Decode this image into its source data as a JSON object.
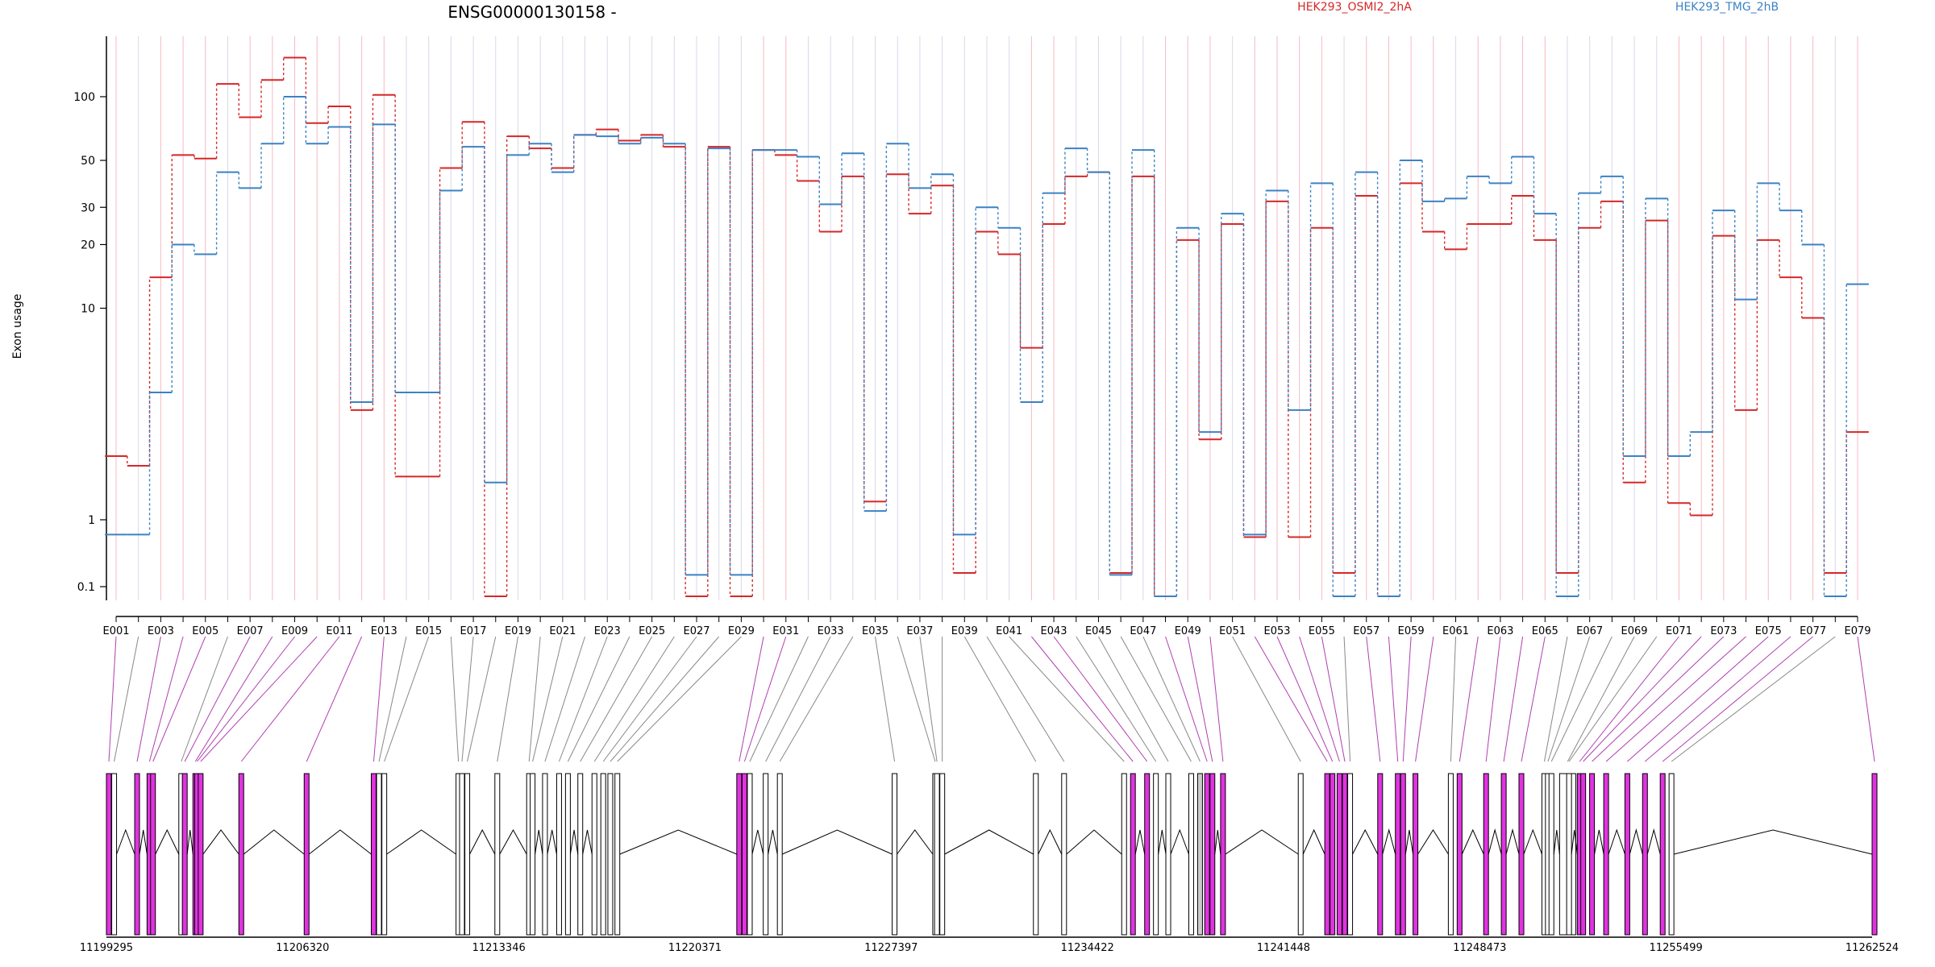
{
  "colors": {
    "series_a": "#d62728",
    "series_b": "#3b82c4",
    "highlight": "#e033e0",
    "constitutive": "#ffffff",
    "retained": "#cccccc",
    "highlight_link": "#b03fb0",
    "plain_link": "#888888",
    "highlight_grid": "#f6b9c3",
    "plain_grid": "#d7dae8"
  },
  "chart_data": {
    "type": "line",
    "title": "ENSG00000130158 -",
    "ylabel": "Exon usage",
    "y_scale": "log-like",
    "y_ticks": [
      0.1,
      1,
      10,
      20,
      30,
      50,
      100
    ],
    "categories": [
      "E001",
      "E002",
      "E003",
      "E004",
      "E005",
      "E006",
      "E007",
      "E008",
      "E009",
      "E010",
      "E011",
      "E012",
      "E013",
      "E014",
      "E015",
      "E016",
      "E017",
      "E018",
      "E019",
      "E020",
      "E021",
      "E022",
      "E023",
      "E024",
      "E025",
      "E026",
      "E027",
      "E028",
      "E029",
      "E030",
      "E031",
      "E032",
      "E033",
      "E034",
      "E035",
      "E036",
      "E037",
      "E038",
      "E039",
      "E040",
      "E041",
      "E042",
      "E043",
      "E044",
      "E045",
      "E046",
      "E047",
      "E048",
      "E049",
      "E050",
      "E051",
      "E052",
      "E053",
      "E054",
      "E055",
      "E056",
      "E057",
      "E058",
      "E059",
      "E060",
      "E061",
      "E062",
      "E063",
      "E064",
      "E065",
      "E066",
      "E067",
      "E068",
      "E069",
      "E070",
      "E071",
      "E072",
      "E073",
      "E074",
      "E075",
      "E076",
      "E077",
      "E078",
      "E079"
    ],
    "tick_labels": [
      "E001",
      "E003",
      "E005",
      "E007",
      "E009",
      "E011",
      "E013",
      "E015",
      "E017",
      "E019",
      "E021",
      "E023",
      "E025",
      "E027",
      "E029",
      "E031",
      "E033",
      "E035",
      "E037",
      "E039",
      "E041",
      "E043",
      "E045",
      "E047",
      "E049",
      "E051",
      "E053",
      "E055",
      "E057",
      "E059",
      "E061",
      "E063",
      "E065",
      "E067",
      "E069",
      "E071",
      "E073",
      "E075",
      "E077",
      "E079"
    ],
    "highlighted_exons": [
      "E001",
      "E003",
      "E004",
      "E005",
      "E007",
      "E008",
      "E009",
      "E010",
      "E011",
      "E012",
      "E013",
      "E030",
      "E031",
      "E042",
      "E043",
      "E048",
      "E049",
      "E050",
      "E052",
      "E053",
      "E054",
      "E055",
      "E057",
      "E058",
      "E059",
      "E060",
      "E062",
      "E063",
      "E064",
      "E065",
      "E071",
      "E072",
      "E073",
      "E074",
      "E075",
      "E076",
      "E077",
      "E079"
    ],
    "series": [
      {
        "name": "HEK293_OSMI2_2hA",
        "values": [
          2,
          1.8,
          14,
          53,
          51,
          115,
          80,
          120,
          153,
          75,
          90,
          3.3,
          102,
          1.6,
          1.6,
          46,
          76,
          0.07,
          65,
          57,
          46,
          66,
          70,
          62,
          66,
          58,
          0.07,
          58,
          0.07,
          56,
          53,
          40,
          23,
          42,
          1.22,
          43,
          28,
          38,
          0.16,
          23,
          18,
          6.5,
          25,
          42,
          44,
          0.16,
          42,
          0.07,
          21,
          2.4,
          25,
          0.55,
          32,
          0.55,
          24,
          0.16,
          34,
          0.07,
          39,
          23,
          19,
          25,
          25,
          34,
          21,
          0.16,
          24,
          32,
          1.5,
          26,
          1.2,
          1.05,
          22,
          3.3,
          21,
          14,
          9,
          0.16,
          2.6
        ]
      },
      {
        "name": "HEK293_TMG_2hB",
        "values": [
          0.6,
          0.6,
          4,
          20,
          18,
          44,
          37,
          60,
          100,
          60,
          72,
          3.6,
          74,
          4,
          4,
          36,
          58,
          1.5,
          53,
          60,
          44,
          66,
          65,
          60,
          64,
          60,
          0.15,
          57,
          0.15,
          56,
          56,
          52,
          31,
          54,
          1.1,
          60,
          37,
          43,
          0.6,
          30,
          24,
          3.6,
          35,
          57,
          44,
          0.15,
          56,
          0.07,
          24,
          2.6,
          28,
          0.6,
          36,
          3.3,
          39,
          0.07,
          44,
          0.07,
          50,
          32,
          33,
          42,
          39,
          52,
          28,
          0.07,
          35,
          42,
          2,
          33,
          2,
          2.6,
          29,
          11,
          39,
          29,
          20,
          0.07,
          13
        ]
      }
    ],
    "gene_track": {
      "coordinate_labels": [
        "11199295",
        "11206320",
        "11213346",
        "11220371",
        "11227397",
        "11234422",
        "11241448",
        "11248473",
        "11255499",
        "11262524"
      ]
    }
  }
}
